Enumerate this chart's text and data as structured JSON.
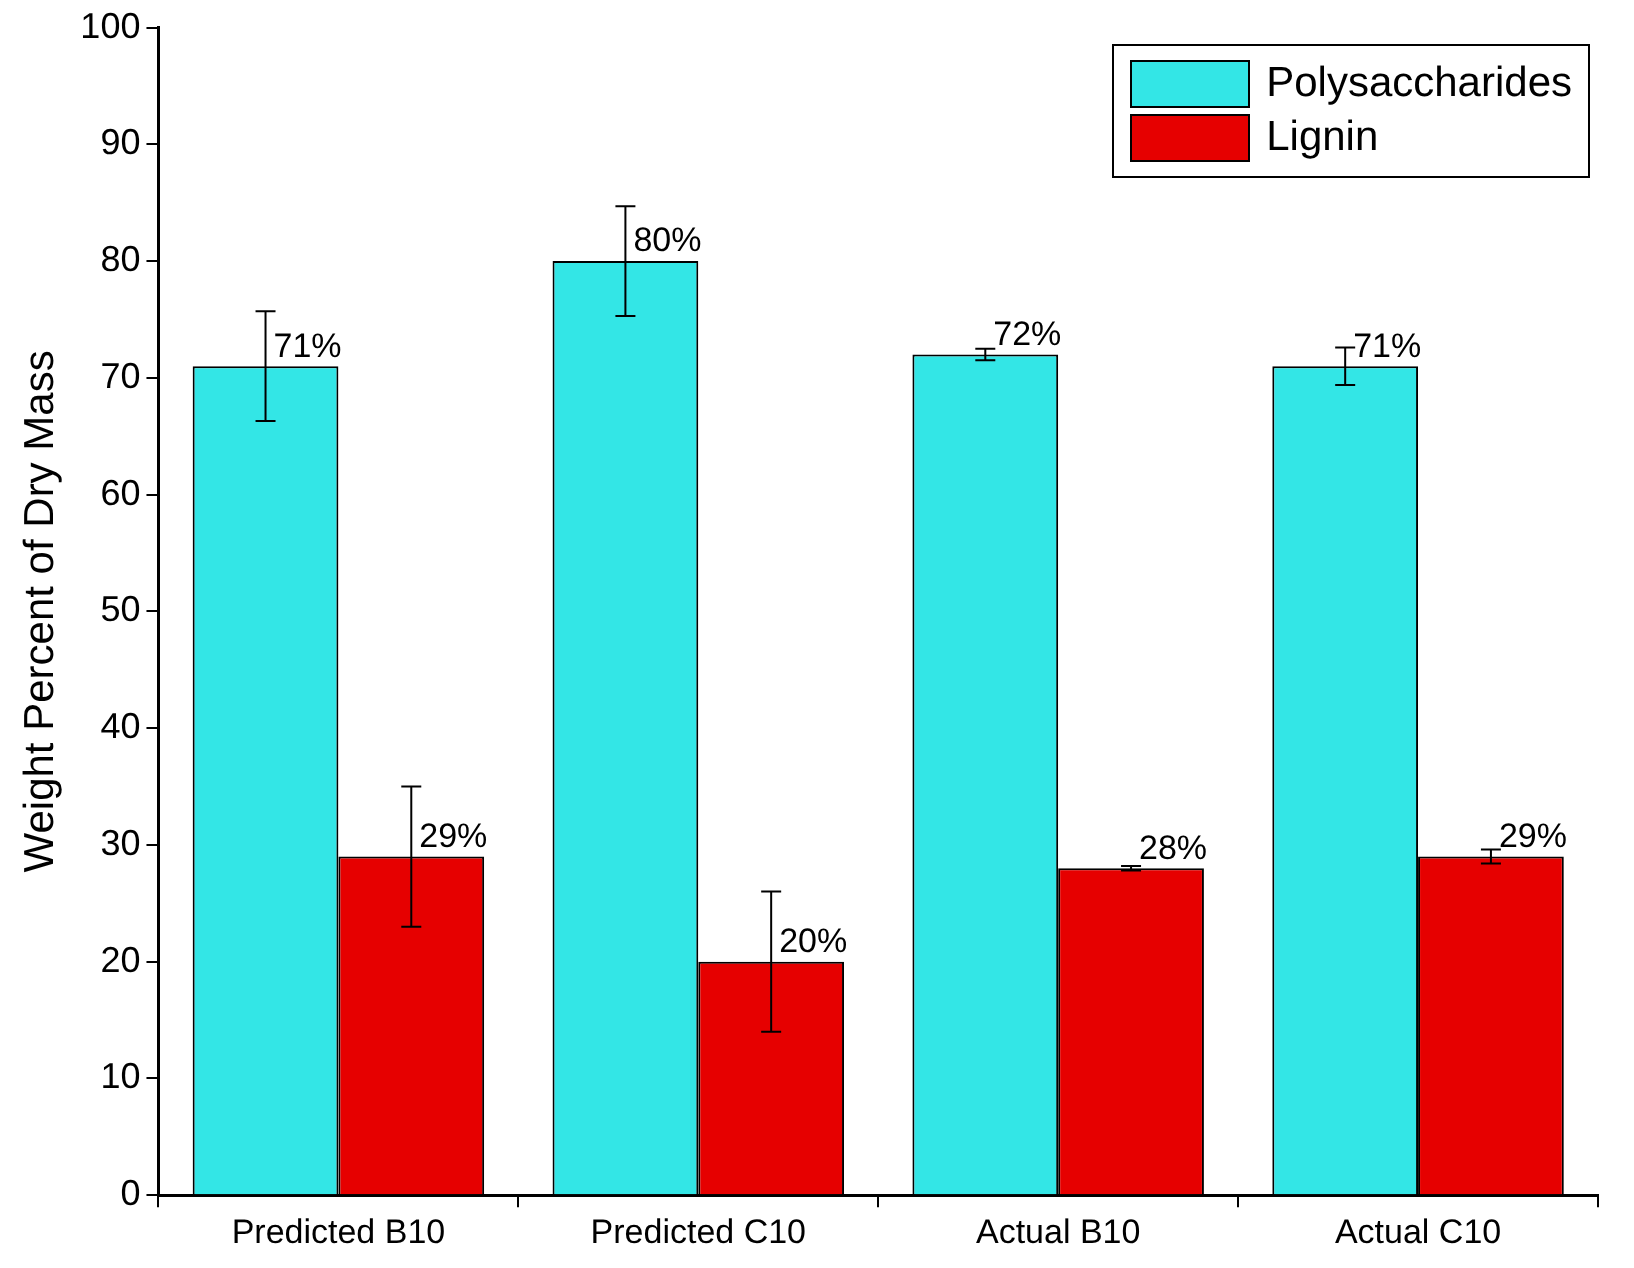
{
  "chart_data": {
    "type": "bar",
    "ylabel": "Weight Percent of Dry Mass",
    "categories": [
      "Predicted B10",
      "Predicted C10",
      "Actual B10",
      "Actual C10"
    ],
    "series": [
      {
        "name": "Polysaccharides",
        "color": "#33e6e6",
        "values": [
          71,
          80,
          72,
          71
        ],
        "errors": [
          4.7,
          4.7,
          0.5,
          1.6
        ],
        "value_labels": [
          "71%",
          "80%",
          "72%",
          "71%"
        ]
      },
      {
        "name": "Lignin",
        "color": "#e60000",
        "values": [
          29,
          20,
          28,
          29
        ],
        "errors": [
          6,
          6,
          0.2,
          0.6
        ],
        "value_labels": [
          "29%",
          "20%",
          "28%",
          "29%"
        ]
      }
    ],
    "ylim": [
      0,
      100
    ],
    "yticks": [
      0,
      10,
      20,
      30,
      40,
      50,
      60,
      70,
      80,
      90,
      100
    ],
    "grid": false,
    "legend": "top right"
  }
}
